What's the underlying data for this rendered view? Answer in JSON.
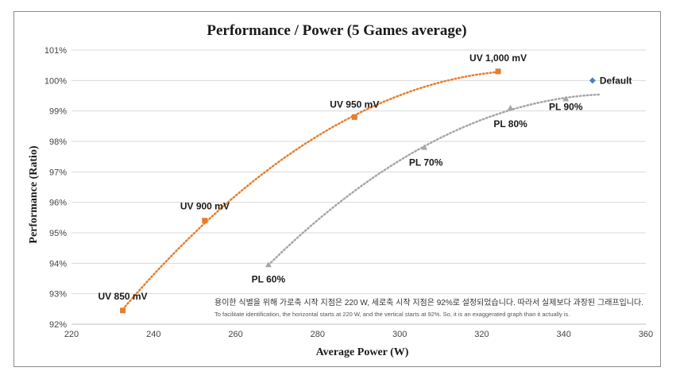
{
  "chart_data": {
    "type": "scatter",
    "title": "Performance / Power (5 Games average)",
    "xlabel": "Average Power (W)",
    "ylabel": "Performance (Ratio)",
    "xlim": [
      220,
      360
    ],
    "ylim": [
      92,
      101
    ],
    "x_ticks": [
      "220",
      "240",
      "260",
      "280",
      "300",
      "320",
      "340",
      "360"
    ],
    "y_ticks": [
      "92%",
      "93%",
      "94%",
      "95%",
      "96%",
      "97%",
      "98%",
      "99%",
      "100%",
      "101%"
    ],
    "grid": "horizontal",
    "series": [
      {
        "color": "#E67E2E",
        "marker": "square",
        "trendline": "dotted",
        "points": [
          {
            "x": 232.5,
            "y": 92.45,
            "label": "UV 850 mV"
          },
          {
            "x": 252.5,
            "y": 95.4,
            "label": "UV 900 mV"
          },
          {
            "x": 289,
            "y": 98.8,
            "label": "UV 950 mV"
          },
          {
            "x": 324,
            "y": 100.3,
            "label": "UV 1,000 mV"
          }
        ]
      },
      {
        "color": "#A6A6A6",
        "marker": "triangle",
        "trendline": "dotted",
        "points": [
          {
            "x": 268,
            "y": 93.95,
            "label": "PL 60%"
          },
          {
            "x": 306,
            "y": 97.8,
            "label": "PL 70%"
          },
          {
            "x": 327,
            "y": 99.1,
            "label": "PL 80%"
          },
          {
            "x": 340.5,
            "y": 99.4,
            "label": "PL 90%"
          }
        ]
      },
      {
        "color": "#4F81BD",
        "marker": "diamond",
        "points": [
          {
            "x": 347,
            "y": 100.0,
            "label": "Default"
          }
        ]
      }
    ],
    "annotations": [
      "용이한 식별을 위해 가로축 시작 지점은 220 W, 세로축 시작 지점은 92%로 설정되었습니다. 따라서 실제보다 과장된 그래프입니다.",
      "To facilitate identification, the horizontal starts at 220 W, and the vertical starts at 92%. So, it is an exaggerated graph than it actually is."
    ]
  }
}
